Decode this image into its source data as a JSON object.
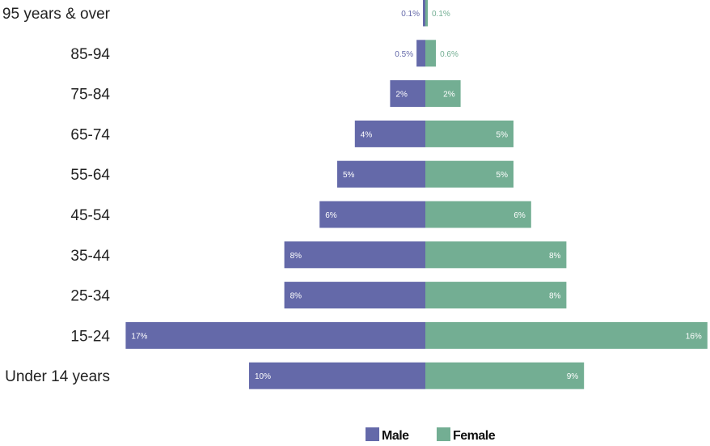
{
  "chart_data": {
    "type": "bar",
    "orientation": "horizontal-diverging",
    "categories": [
      "95 years & over",
      "85-94",
      "75-84",
      "65-74",
      "55-64",
      "45-54",
      "35-44",
      "25-34",
      "15-24",
      "Under 14 years"
    ],
    "series": [
      {
        "name": "Male",
        "color": "#6469a9",
        "values": [
          0.1,
          0.5,
          2,
          4,
          5,
          6,
          8,
          8,
          17,
          10
        ],
        "labels": [
          "0.1%",
          "0.5%",
          "2%",
          "4%",
          "5%",
          "6%",
          "8%",
          "8%",
          "17%",
          "10%"
        ]
      },
      {
        "name": "Female",
        "color": "#73ae93",
        "values": [
          0.1,
          0.6,
          2,
          5,
          5,
          6,
          8,
          8,
          16,
          9
        ],
        "labels": [
          "0.1%",
          "0.6%",
          "2%",
          "5%",
          "5%",
          "6%",
          "8%",
          "8%",
          "16%",
          "9%"
        ]
      }
    ],
    "title": "",
    "xlabel": "",
    "ylabel": "",
    "grid": false,
    "legend": "bottom-center"
  }
}
